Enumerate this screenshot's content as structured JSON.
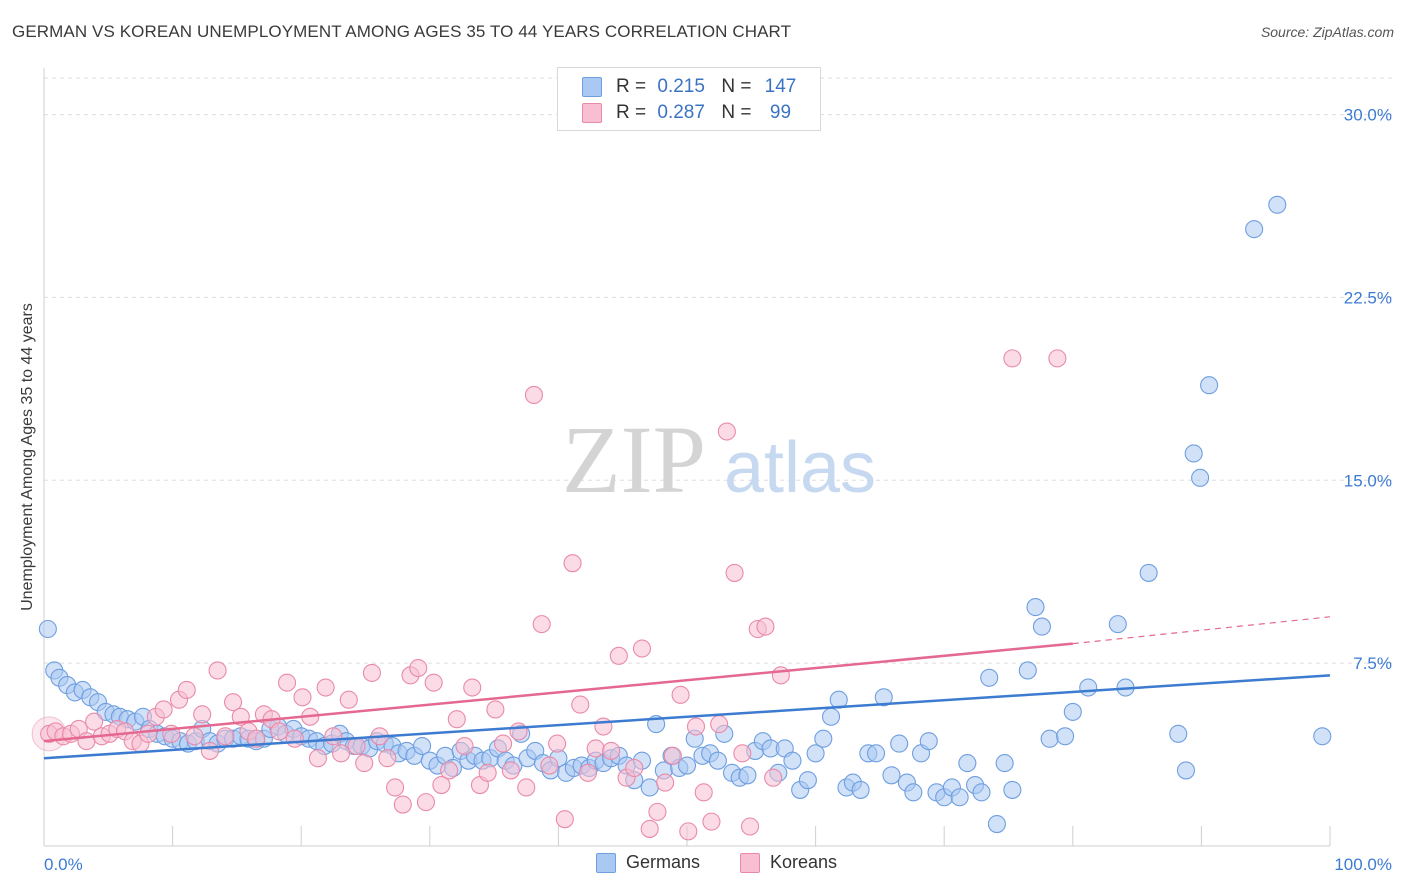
{
  "title": "GERMAN VS KOREAN UNEMPLOYMENT AMONG AGES 35 TO 44 YEARS CORRELATION CHART",
  "source": "Source: ZipAtlas.com",
  "watermark": {
    "zip": "ZIP",
    "atlas": "atlas"
  },
  "legend_stats": [
    {
      "r_label": "R =",
      "r_value": "0.215",
      "n_label": "N =",
      "n_value": "147",
      "color": "#a9c9f2",
      "border": "#6f9fe0"
    },
    {
      "r_label": "R =",
      "r_value": "0.287",
      "n_label": "N =",
      "n_value": "99",
      "color": "#f7bfd1",
      "border": "#e98aa9"
    }
  ],
  "chart_data": {
    "type": "scatter",
    "xlabel": "",
    "ylabel": "Unemployment Among Ages 35 to 44 years",
    "xlim": [
      0,
      100
    ],
    "ylim": [
      0,
      31.5
    ],
    "x_tick_labels": [
      "0.0%",
      "100.0%"
    ],
    "y_ticks": [
      7.5,
      15.0,
      22.5,
      30.0
    ],
    "y_tick_labels": [
      "7.5%",
      "15.0%",
      "22.5%",
      "30.0%"
    ],
    "grid": true,
    "legend_position": "bottom",
    "series": [
      {
        "name": "Germans",
        "color": "#a9c9f2",
        "stroke": "#6f9fe0",
        "trend": {
          "x": [
            0,
            100
          ],
          "y": [
            3.6,
            7.0
          ],
          "color": "#3d7bd1"
        },
        "points": [
          [
            0.3,
            8.9
          ],
          [
            0.8,
            7.2
          ],
          [
            1.2,
            6.9
          ],
          [
            1.8,
            6.6
          ],
          [
            2.4,
            6.3
          ],
          [
            3.0,
            6.4
          ],
          [
            3.6,
            6.1
          ],
          [
            4.2,
            5.9
          ],
          [
            4.8,
            5.5
          ],
          [
            5.4,
            5.4
          ],
          [
            5.9,
            5.3
          ],
          [
            6.5,
            5.2
          ],
          [
            7.1,
            5.1
          ],
          [
            7.7,
            5.3
          ],
          [
            8.2,
            4.8
          ],
          [
            8.8,
            4.6
          ],
          [
            9.4,
            4.5
          ],
          [
            10.0,
            4.4
          ],
          [
            10.6,
            4.3
          ],
          [
            11.2,
            4.2
          ],
          [
            11.8,
            4.3
          ],
          [
            12.3,
            4.8
          ],
          [
            12.9,
            4.3
          ],
          [
            13.5,
            4.2
          ],
          [
            14.1,
            4.4
          ],
          [
            14.7,
            4.4
          ],
          [
            15.3,
            4.5
          ],
          [
            15.9,
            4.4
          ],
          [
            16.5,
            4.3
          ],
          [
            17.1,
            4.4
          ],
          [
            17.6,
            4.8
          ],
          [
            18.2,
            4.9
          ],
          [
            18.8,
            4.6
          ],
          [
            19.4,
            4.8
          ],
          [
            20.0,
            4.5
          ],
          [
            20.6,
            4.4
          ],
          [
            21.2,
            4.3
          ],
          [
            21.8,
            4.1
          ],
          [
            22.4,
            4.2
          ],
          [
            23.0,
            4.6
          ],
          [
            23.5,
            4.3
          ],
          [
            24.1,
            4.1
          ],
          [
            24.7,
            4.1
          ],
          [
            25.3,
            4.0
          ],
          [
            25.9,
            4.3
          ],
          [
            26.5,
            4.2
          ],
          [
            27.1,
            4.1
          ],
          [
            27.6,
            3.8
          ],
          [
            28.2,
            3.9
          ],
          [
            28.8,
            3.7
          ],
          [
            29.4,
            4.1
          ],
          [
            30.0,
            3.5
          ],
          [
            30.6,
            3.3
          ],
          [
            31.2,
            3.7
          ],
          [
            31.8,
            3.2
          ],
          [
            32.4,
            3.9
          ],
          [
            33.0,
            3.5
          ],
          [
            33.5,
            3.7
          ],
          [
            34.1,
            3.5
          ],
          [
            34.7,
            3.6
          ],
          [
            35.3,
            4.0
          ],
          [
            35.9,
            3.5
          ],
          [
            36.5,
            3.3
          ],
          [
            37.1,
            4.6
          ],
          [
            37.6,
            3.6
          ],
          [
            38.2,
            3.9
          ],
          [
            38.8,
            3.4
          ],
          [
            39.4,
            3.1
          ],
          [
            40.0,
            3.6
          ],
          [
            40.6,
            3.0
          ],
          [
            41.2,
            3.2
          ],
          [
            41.8,
            3.3
          ],
          [
            42.4,
            3.2
          ],
          [
            42.9,
            3.5
          ],
          [
            43.5,
            3.4
          ],
          [
            44.1,
            3.6
          ],
          [
            44.7,
            3.7
          ],
          [
            45.3,
            3.3
          ],
          [
            45.9,
            2.7
          ],
          [
            46.5,
            3.5
          ],
          [
            47.1,
            2.4
          ],
          [
            47.6,
            5.0
          ],
          [
            48.2,
            3.1
          ],
          [
            48.8,
            3.7
          ],
          [
            49.4,
            3.2
          ],
          [
            50.0,
            3.3
          ],
          [
            50.6,
            4.4
          ],
          [
            51.2,
            3.7
          ],
          [
            51.8,
            3.8
          ],
          [
            52.4,
            3.5
          ],
          [
            52.9,
            4.6
          ],
          [
            53.5,
            3.0
          ],
          [
            54.1,
            2.8
          ],
          [
            54.7,
            2.9
          ],
          [
            55.3,
            3.9
          ],
          [
            55.9,
            4.3
          ],
          [
            56.5,
            4.0
          ],
          [
            57.1,
            3.0
          ],
          [
            57.6,
            4.0
          ],
          [
            58.2,
            3.5
          ],
          [
            58.8,
            2.3
          ],
          [
            59.4,
            2.7
          ],
          [
            60.0,
            3.8
          ],
          [
            60.6,
            4.4
          ],
          [
            61.2,
            5.3
          ],
          [
            61.8,
            6.0
          ],
          [
            62.4,
            2.4
          ],
          [
            62.9,
            2.6
          ],
          [
            63.5,
            2.3
          ],
          [
            64.1,
            3.8
          ],
          [
            64.7,
            3.8
          ],
          [
            65.3,
            6.1
          ],
          [
            65.9,
            2.9
          ],
          [
            66.5,
            4.2
          ],
          [
            67.1,
            2.6
          ],
          [
            67.6,
            2.2
          ],
          [
            68.2,
            3.8
          ],
          [
            68.8,
            4.3
          ],
          [
            69.4,
            2.2
          ],
          [
            70.0,
            2.0
          ],
          [
            70.6,
            2.4
          ],
          [
            71.2,
            2.0
          ],
          [
            71.8,
            3.4
          ],
          [
            72.4,
            2.5
          ],
          [
            72.9,
            2.2
          ],
          [
            73.5,
            6.9
          ],
          [
            74.1,
            0.9
          ],
          [
            74.7,
            3.4
          ],
          [
            75.3,
            2.3
          ],
          [
            76.5,
            7.2
          ],
          [
            77.1,
            9.8
          ],
          [
            77.6,
            9.0
          ],
          [
            78.2,
            4.4
          ],
          [
            79.4,
            4.5
          ],
          [
            80.0,
            5.5
          ],
          [
            81.2,
            6.5
          ],
          [
            83.5,
            9.1
          ],
          [
            84.1,
            6.5
          ],
          [
            85.9,
            11.2
          ],
          [
            88.2,
            4.6
          ],
          [
            88.8,
            3.1
          ],
          [
            89.4,
            16.1
          ],
          [
            89.9,
            15.1
          ],
          [
            90.6,
            18.9
          ],
          [
            94.1,
            25.3
          ],
          [
            95.9,
            26.3
          ],
          [
            99.4,
            4.5
          ]
        ]
      },
      {
        "name": "Koreans",
        "color": "#f7bfd1",
        "stroke": "#e98aa9",
        "trend": {
          "x": [
            0,
            80
          ],
          "y": [
            4.3,
            8.3
          ],
          "dash_to": [
            100,
            9.4
          ],
          "color": "#e4688f"
        },
        "points": [
          [
            0.4,
            4.6
          ],
          [
            0.9,
            4.7
          ],
          [
            1.5,
            4.5
          ],
          [
            2.1,
            4.6
          ],
          [
            2.7,
            4.8
          ],
          [
            3.3,
            4.3
          ],
          [
            3.9,
            5.1
          ],
          [
            4.5,
            4.5
          ],
          [
            5.1,
            4.6
          ],
          [
            5.7,
            4.8
          ],
          [
            6.3,
            4.7
          ],
          [
            6.9,
            4.3
          ],
          [
            7.5,
            4.2
          ],
          [
            8.1,
            4.6
          ],
          [
            8.7,
            5.3
          ],
          [
            9.3,
            5.6
          ],
          [
            9.9,
            4.6
          ],
          [
            10.5,
            6.0
          ],
          [
            11.1,
            6.4
          ],
          [
            11.7,
            4.5
          ],
          [
            12.3,
            5.4
          ],
          [
            12.9,
            3.9
          ],
          [
            13.5,
            7.2
          ],
          [
            14.1,
            4.5
          ],
          [
            14.7,
            5.9
          ],
          [
            15.3,
            5.3
          ],
          [
            15.9,
            4.7
          ],
          [
            16.5,
            4.4
          ],
          [
            17.1,
            5.4
          ],
          [
            17.7,
            5.2
          ],
          [
            18.3,
            4.7
          ],
          [
            18.9,
            6.7
          ],
          [
            19.5,
            4.4
          ],
          [
            20.1,
            6.1
          ],
          [
            20.7,
            5.3
          ],
          [
            21.3,
            3.6
          ],
          [
            21.9,
            6.5
          ],
          [
            22.5,
            4.5
          ],
          [
            23.1,
            3.8
          ],
          [
            23.7,
            6.0
          ],
          [
            24.3,
            4.1
          ],
          [
            24.9,
            3.4
          ],
          [
            25.5,
            7.1
          ],
          [
            26.1,
            4.5
          ],
          [
            26.7,
            3.6
          ],
          [
            27.3,
            2.4
          ],
          [
            27.9,
            1.7
          ],
          [
            28.5,
            7.0
          ],
          [
            29.1,
            7.3
          ],
          [
            29.7,
            1.8
          ],
          [
            30.3,
            6.7
          ],
          [
            30.9,
            2.5
          ],
          [
            31.5,
            3.1
          ],
          [
            32.1,
            5.2
          ],
          [
            32.7,
            4.1
          ],
          [
            33.3,
            6.5
          ],
          [
            33.9,
            2.5
          ],
          [
            34.5,
            3.0
          ],
          [
            35.1,
            5.6
          ],
          [
            35.7,
            4.2
          ],
          [
            36.3,
            3.1
          ],
          [
            36.9,
            4.7
          ],
          [
            37.5,
            2.4
          ],
          [
            38.1,
            18.5
          ],
          [
            38.7,
            9.1
          ],
          [
            39.3,
            3.3
          ],
          [
            39.9,
            4.2
          ],
          [
            40.5,
            1.1
          ],
          [
            41.1,
            11.6
          ],
          [
            41.7,
            5.8
          ],
          [
            42.3,
            3.0
          ],
          [
            42.9,
            4.0
          ],
          [
            43.5,
            4.9
          ],
          [
            44.1,
            3.9
          ],
          [
            44.7,
            7.8
          ],
          [
            45.3,
            2.8
          ],
          [
            45.9,
            3.2
          ],
          [
            46.5,
            8.1
          ],
          [
            47.1,
            0.7
          ],
          [
            47.7,
            1.4
          ],
          [
            48.3,
            2.6
          ],
          [
            48.9,
            3.7
          ],
          [
            49.5,
            6.2
          ],
          [
            50.1,
            0.6
          ],
          [
            50.7,
            4.9
          ],
          [
            51.3,
            2.2
          ],
          [
            51.9,
            1.0
          ],
          [
            52.5,
            5.0
          ],
          [
            53.1,
            17.0
          ],
          [
            53.7,
            11.2
          ],
          [
            54.3,
            3.8
          ],
          [
            54.9,
            0.8
          ],
          [
            55.5,
            8.9
          ],
          [
            56.1,
            9.0
          ],
          [
            56.7,
            2.8
          ],
          [
            57.3,
            7.0
          ],
          [
            75.3,
            20.0
          ],
          [
            78.8,
            20.0
          ]
        ]
      }
    ]
  },
  "bottom_legend": [
    {
      "label": "Germans",
      "color": "#a9c9f2",
      "border": "#6f9fe0"
    },
    {
      "label": "Koreans",
      "color": "#f7bfd1",
      "border": "#e98aa9"
    }
  ]
}
